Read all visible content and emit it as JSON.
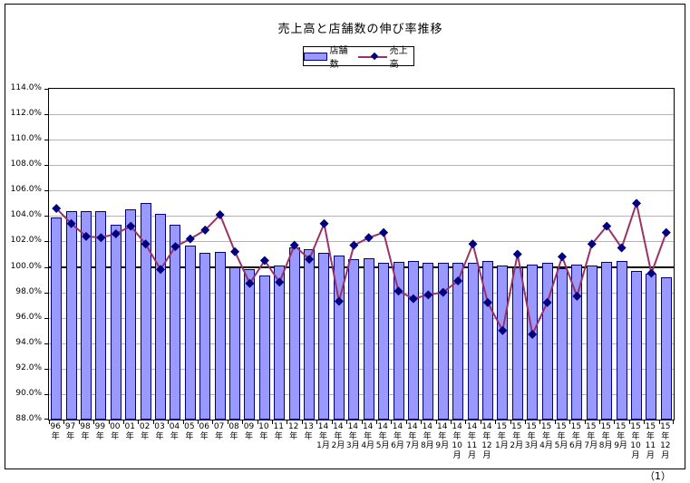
{
  "page": {
    "number_label": "（1）"
  },
  "colors": {
    "bar_fill": "#9999FF",
    "bar_border": "#000080",
    "line": "#993366",
    "marker": "#000080",
    "gridline": "#b3b3b3",
    "emphasized_gridline": "#000000",
    "background": "#FFFFFF"
  },
  "chart_data": {
    "type": "bar",
    "subtype": "bar+line combination",
    "title": "売上高と店舗数の伸び率推移",
    "legend_position": "top-center",
    "grid": true,
    "ylim": [
      88,
      114
    ],
    "y_step": 2,
    "emphasized_value": 100,
    "y_axis_tick_labels": [
      "114.0%",
      "112.0%",
      "110.0%",
      "108.0%",
      "106.0%",
      "104.0%",
      "102.0%",
      "100.0%",
      "98.0%",
      "96.0%",
      "94.0%",
      "92.0%",
      "90.0%",
      "88.0%"
    ],
    "categories": [
      "96年",
      "97年",
      "98年",
      "99年",
      "00年",
      "01年",
      "02年",
      "03年",
      "04年",
      "05年",
      "06年",
      "07年",
      "08年",
      "09年",
      "10年",
      "11年",
      "12年",
      "13年",
      "14年1月",
      "14年2月",
      "14年3月",
      "14年4月",
      "14年5月",
      "14年6月",
      "14年7月",
      "14年8月",
      "14年9月",
      "14年10月",
      "14年11月",
      "14年12月",
      "15年1月",
      "15年2月",
      "15年3月",
      "15年4月",
      "15年5月",
      "15年6月",
      "15年7月",
      "15年8月",
      "15年9月",
      "15年10月",
      "15年11月",
      "15年12月"
    ],
    "categories_display_lines": [
      [
        "96",
        "年"
      ],
      [
        "97",
        "年"
      ],
      [
        "98",
        "年"
      ],
      [
        "99",
        "年"
      ],
      [
        "00",
        "年"
      ],
      [
        "01",
        "年"
      ],
      [
        "02",
        "年"
      ],
      [
        "03",
        "年"
      ],
      [
        "04",
        "年"
      ],
      [
        "05",
        "年"
      ],
      [
        "06",
        "年"
      ],
      [
        "07",
        "年"
      ],
      [
        "08",
        "年"
      ],
      [
        "09",
        "年"
      ],
      [
        "10",
        "年"
      ],
      [
        "11",
        "年"
      ],
      [
        "12",
        "年"
      ],
      [
        "13",
        "年"
      ],
      [
        "14",
        "年",
        "1月"
      ],
      [
        "14",
        "年",
        "2月"
      ],
      [
        "14",
        "年",
        "3月"
      ],
      [
        "14",
        "年",
        "4月"
      ],
      [
        "14",
        "年",
        "5月"
      ],
      [
        "14",
        "年",
        "6月"
      ],
      [
        "14",
        "年",
        "7月"
      ],
      [
        "14",
        "年",
        "8月"
      ],
      [
        "14",
        "年",
        "9月"
      ],
      [
        "14",
        "年",
        "10",
        "月"
      ],
      [
        "14",
        "年",
        "11",
        "月"
      ],
      [
        "14",
        "年",
        "12",
        "月"
      ],
      [
        "15",
        "年",
        "1月"
      ],
      [
        "15",
        "年",
        "2月"
      ],
      [
        "15",
        "年",
        "3月"
      ],
      [
        "15",
        "年",
        "4月"
      ],
      [
        "15",
        "年",
        "5月"
      ],
      [
        "15",
        "年",
        "6月"
      ],
      [
        "15",
        "年",
        "7月"
      ],
      [
        "15",
        "年",
        "8月"
      ],
      [
        "15",
        "年",
        "9月"
      ],
      [
        "15",
        "年",
        "10",
        "月"
      ],
      [
        "15",
        "年",
        "11",
        "月"
      ],
      [
        "15",
        "年",
        "12",
        "月"
      ]
    ],
    "series": [
      {
        "name": "店舗数",
        "render": "bar",
        "values": [
          103.9,
          104.4,
          104.4,
          104.4,
          103.3,
          104.5,
          105.0,
          104.2,
          103.3,
          101.7,
          101.1,
          101.2,
          100.0,
          99.8,
          99.3,
          100.1,
          101.5,
          101.4,
          101.1,
          100.9,
          100.6,
          100.7,
          100.3,
          100.4,
          100.5,
          100.3,
          100.3,
          100.3,
          100.3,
          100.5,
          100.1,
          100.0,
          100.2,
          100.3,
          99.9,
          100.2,
          100.1,
          100.4,
          100.5,
          99.7,
          99.5,
          99.2
        ]
      },
      {
        "name": "売上高",
        "render": "line",
        "values": [
          104.6,
          103.4,
          102.4,
          102.3,
          102.6,
          103.2,
          101.8,
          99.8,
          101.6,
          102.2,
          102.9,
          104.1,
          101.2,
          98.7,
          100.5,
          98.8,
          101.7,
          100.6,
          103.4,
          97.3,
          101.7,
          102.3,
          102.7,
          98.1,
          97.5,
          97.8,
          98.0,
          98.9,
          101.8,
          97.2,
          95.0,
          101.0,
          94.7,
          97.2,
          100.8,
          97.7,
          101.8,
          103.2,
          101.5,
          105.0,
          99.5,
          102.7
        ]
      }
    ]
  }
}
